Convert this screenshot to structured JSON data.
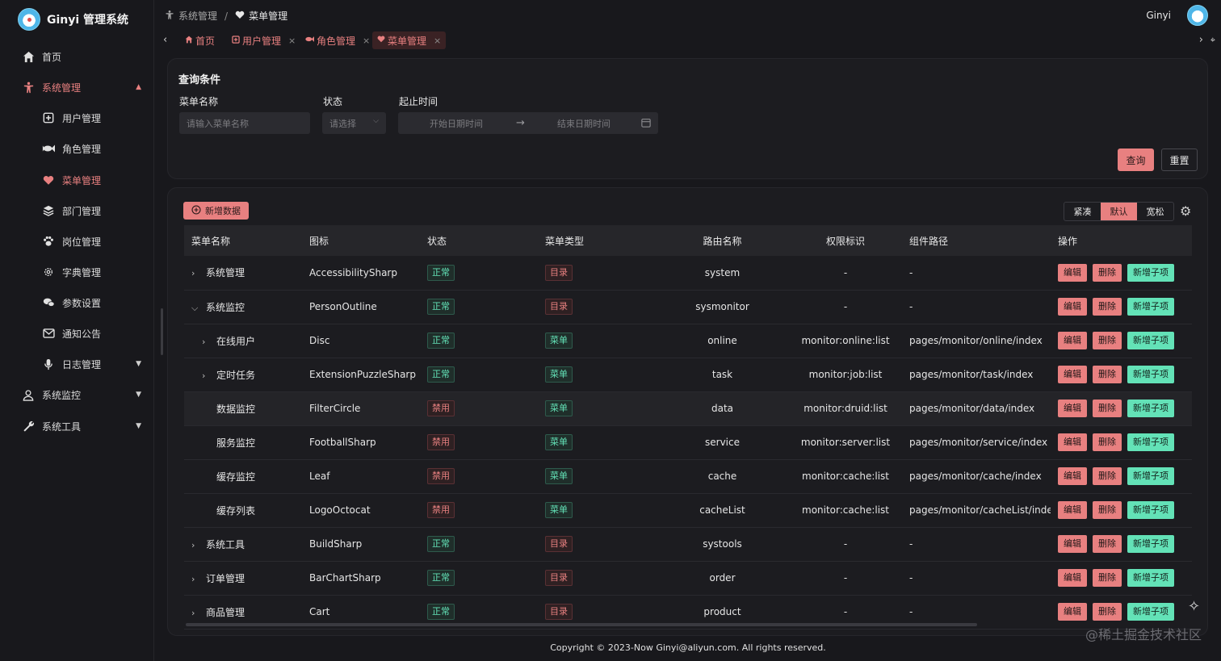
{
  "app": {
    "title": "Ginyi 管理系统"
  },
  "sidebar": {
    "items": [
      {
        "label": "首页",
        "icon": "home-icon"
      },
      {
        "label": "系统管理",
        "icon": "accessibility-icon",
        "expanded": true
      },
      {
        "label": "用户管理",
        "icon": "user-add-icon"
      },
      {
        "label": "角色管理",
        "icon": "fish-icon"
      },
      {
        "label": "菜单管理",
        "icon": "heart-icon",
        "active": true
      },
      {
        "label": "部门管理",
        "icon": "layers-icon"
      },
      {
        "label": "岗位管理",
        "icon": "paw-icon"
      },
      {
        "label": "字典管理",
        "icon": "settings-icon"
      },
      {
        "label": "参数设置",
        "icon": "chat-icon"
      },
      {
        "label": "通知公告",
        "icon": "mail-icon"
      },
      {
        "label": "日志管理",
        "icon": "mic-icon"
      },
      {
        "label": "系统监控",
        "icon": "person-icon"
      },
      {
        "label": "系统工具",
        "icon": "wrench-icon"
      }
    ]
  },
  "header": {
    "breadcrumb": [
      "系统管理",
      "菜单管理"
    ],
    "user_name": "Ginyi"
  },
  "tabs": [
    {
      "label": "首页",
      "closable": false
    },
    {
      "label": "用户管理",
      "closable": true
    },
    {
      "label": "角色管理",
      "closable": true
    },
    {
      "label": "菜单管理",
      "closable": true,
      "active": true
    }
  ],
  "query": {
    "title": "查询条件",
    "menu_name_label": "菜单名称",
    "menu_name_placeholder": "请输入菜单名称",
    "status_label": "状态",
    "status_placeholder": "请选择",
    "time_label": "起止时间",
    "start_placeholder": "开始日期时间",
    "end_placeholder": "结束日期时间",
    "search_label": "查询",
    "reset_label": "重置"
  },
  "table": {
    "add_label": "新增数据",
    "density": [
      "紧凑",
      "默认",
      "宽松"
    ],
    "density_selected": "默认",
    "columns": [
      "菜单名称",
      "图标",
      "状态",
      "菜单类型",
      "路由名称",
      "权限标识",
      "组件路径",
      "操作"
    ],
    "actions": {
      "edit": "编辑",
      "delete": "删除",
      "add_child": "新增子项"
    },
    "rows": [
      {
        "name": "系统管理",
        "level": 0,
        "expander": "collapsed",
        "icon": "AccessibilitySharp",
        "status": "正常",
        "status_ok": true,
        "type": "目录",
        "is_dir": true,
        "route": "system",
        "perm": "-",
        "component": "-"
      },
      {
        "name": "系统监控",
        "level": 0,
        "expander": "expanded",
        "icon": "PersonOutline",
        "status": "正常",
        "status_ok": true,
        "type": "目录",
        "is_dir": true,
        "route": "sysmonitor",
        "perm": "-",
        "component": "-"
      },
      {
        "name": "在线用户",
        "level": 1,
        "expander": "collapsed",
        "icon": "Disc",
        "status": "正常",
        "status_ok": true,
        "type": "菜单",
        "is_dir": false,
        "route": "online",
        "perm": "monitor:online:list",
        "component": "pages/monitor/online/index"
      },
      {
        "name": "定时任务",
        "level": 1,
        "expander": "collapsed",
        "icon": "ExtensionPuzzleSharp",
        "status": "正常",
        "status_ok": true,
        "type": "菜单",
        "is_dir": false,
        "route": "task",
        "perm": "monitor:job:list",
        "component": "pages/monitor/task/index"
      },
      {
        "name": "数据监控",
        "level": 1,
        "expander": "none",
        "icon": "FilterCircle",
        "status": "禁用",
        "status_ok": false,
        "type": "菜单",
        "is_dir": false,
        "route": "data",
        "perm": "monitor:druid:list",
        "component": "pages/monitor/data/index",
        "hover": true
      },
      {
        "name": "服务监控",
        "level": 1,
        "expander": "none",
        "icon": "FootballSharp",
        "status": "禁用",
        "status_ok": false,
        "type": "菜单",
        "is_dir": false,
        "route": "service",
        "perm": "monitor:server:list",
        "component": "pages/monitor/service/index"
      },
      {
        "name": "缓存监控",
        "level": 1,
        "expander": "none",
        "icon": "Leaf",
        "status": "禁用",
        "status_ok": false,
        "type": "菜单",
        "is_dir": false,
        "route": "cache",
        "perm": "monitor:cache:list",
        "component": "pages/monitor/cache/index"
      },
      {
        "name": "缓存列表",
        "level": 1,
        "expander": "none",
        "icon": "LogoOctocat",
        "status": "禁用",
        "status_ok": false,
        "type": "菜单",
        "is_dir": false,
        "route": "cacheList",
        "perm": "monitor:cache:list",
        "component": "pages/monitor/cacheList/index"
      },
      {
        "name": "系统工具",
        "level": 0,
        "expander": "collapsed",
        "icon": "BuildSharp",
        "status": "正常",
        "status_ok": true,
        "type": "目录",
        "is_dir": true,
        "route": "systools",
        "perm": "-",
        "component": "-"
      },
      {
        "name": "订单管理",
        "level": 0,
        "expander": "collapsed",
        "icon": "BarChartSharp",
        "status": "正常",
        "status_ok": true,
        "type": "目录",
        "is_dir": true,
        "route": "order",
        "perm": "-",
        "component": "-"
      },
      {
        "name": "商品管理",
        "level": 0,
        "expander": "collapsed",
        "icon": "Cart",
        "status": "正常",
        "status_ok": true,
        "type": "目录",
        "is_dir": true,
        "route": "product",
        "perm": "-",
        "component": "-"
      }
    ]
  },
  "footer": {
    "copyright": "Copyright © 2023-Now Ginyi@aliyun.com. All rights reserved."
  },
  "watermark": "@稀土掘金技术社区",
  "colors": {
    "accent": "#e88080",
    "success": "#63e2b7",
    "background": "#18181c",
    "card": "#1c1c20"
  }
}
